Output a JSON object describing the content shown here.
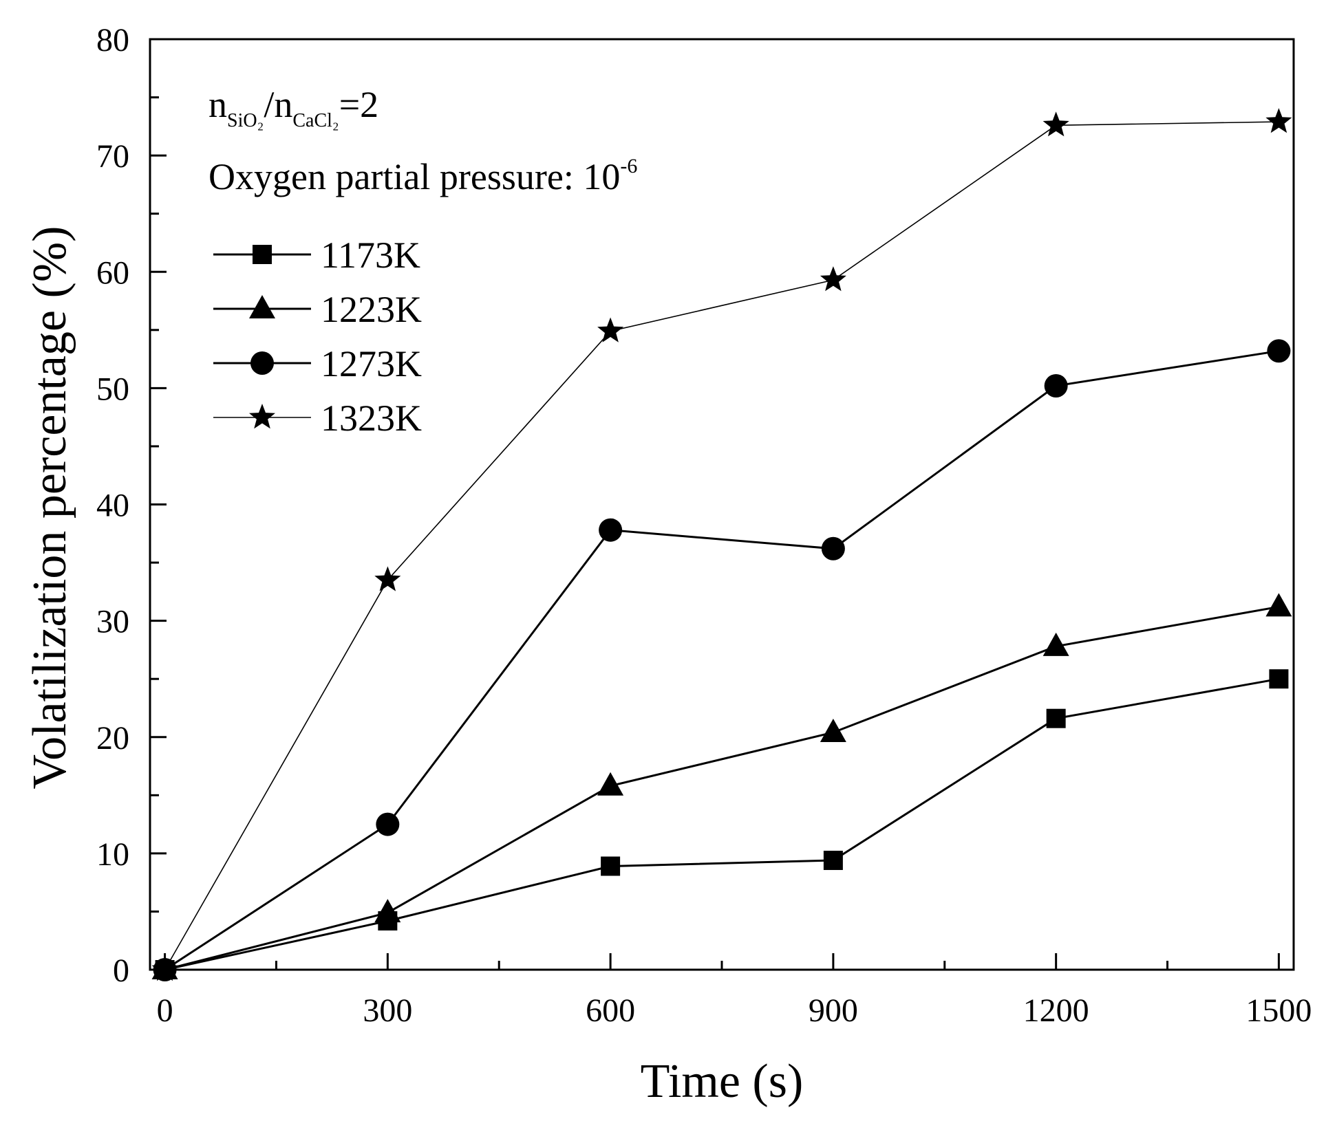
{
  "chart_data": {
    "type": "line",
    "title": "",
    "xlabel": "Time (s)",
    "ylabel": "Volatilization percentage (%)",
    "xlim": [
      -20,
      1520
    ],
    "ylim": [
      0,
      80
    ],
    "x": [
      0,
      300,
      600,
      900,
      1200,
      1500
    ],
    "x_ticks": [
      "0",
      "300",
      "600",
      "900",
      "1200",
      "1500"
    ],
    "y_ticks": [
      "0",
      "10",
      "20",
      "30",
      "40",
      "50",
      "60",
      "70",
      "80"
    ],
    "x_minor_step": 150,
    "y_minor_step": 5,
    "grid": false,
    "legend_position": "top-left",
    "annotation": {
      "ratio_n1": "n",
      "ratio_sub1": "SiO₂",
      "ratio_slash": "/",
      "ratio_n2": "n",
      "ratio_sub2": "CaCl₂",
      "ratio_value": "=2",
      "pressure_label": "Oxygen partial pressure: 10",
      "pressure_exp": "-6"
    },
    "series": [
      {
        "name": "1173K",
        "marker": "square",
        "values": [
          0,
          4.2,
          8.9,
          9.4,
          21.6,
          25.0
        ]
      },
      {
        "name": "1223K",
        "marker": "triangle",
        "values": [
          0,
          4.9,
          15.8,
          20.4,
          27.8,
          31.2
        ]
      },
      {
        "name": "1273K",
        "marker": "circle",
        "values": [
          0,
          12.5,
          37.8,
          36.2,
          50.2,
          53.2
        ]
      },
      {
        "name": "1323K",
        "marker": "star",
        "values": [
          0,
          33.5,
          54.9,
          59.3,
          72.6,
          72.9
        ]
      }
    ],
    "colors": {
      "line": "#000000",
      "marker": "#000000"
    }
  }
}
